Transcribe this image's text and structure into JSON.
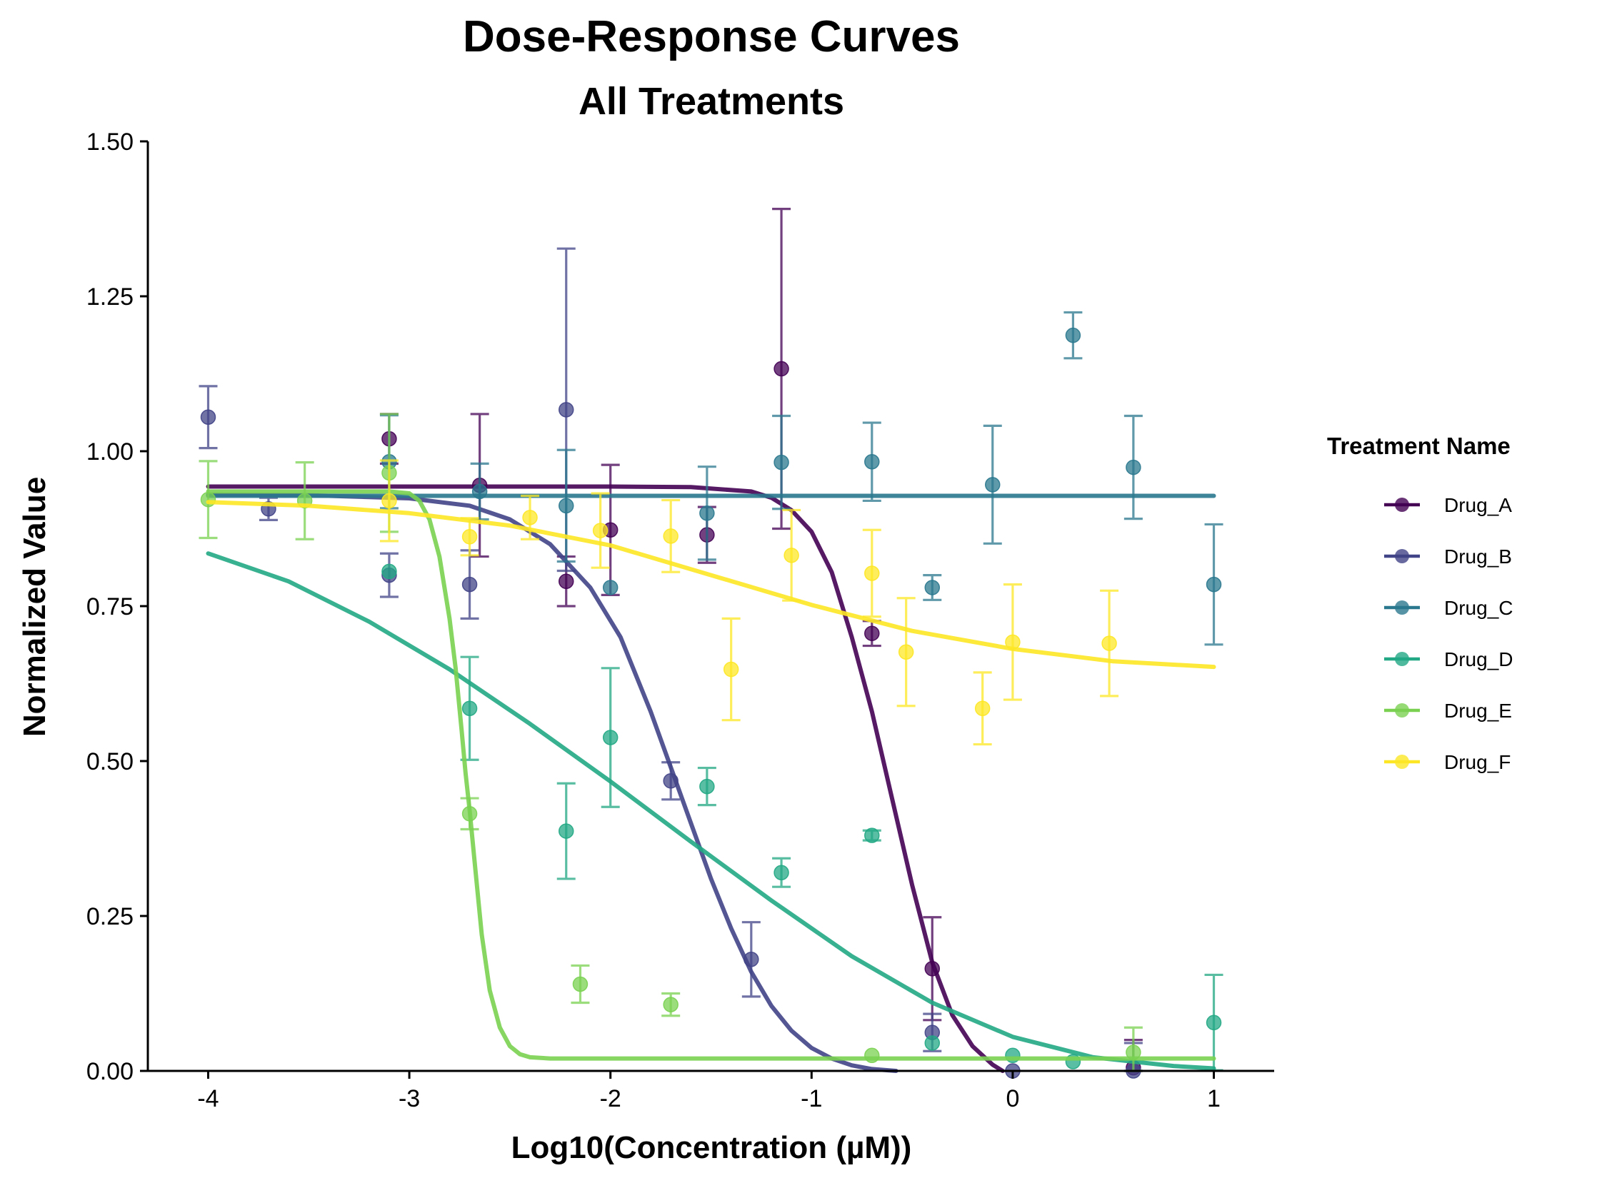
{
  "chart_data": {
    "type": "scatter",
    "title": "Dose-Response Curves",
    "subtitle": "All Treatments",
    "xlabel": "Log10(Concentration (µM))",
    "ylabel": "Normalized Value",
    "xlim": [
      -4.3,
      1.3
    ],
    "ylim": [
      0,
      1.5
    ],
    "x_ticks": [
      -4,
      -3,
      -2,
      -1,
      0,
      1
    ],
    "x_tick_labels": [
      "-4",
      "-3",
      "-2",
      "-1",
      "0",
      "1"
    ],
    "y_ticks": [
      0,
      0.25,
      0.5,
      0.75,
      1.0,
      1.25,
      1.5
    ],
    "y_tick_labels": [
      "0.00",
      "0.25",
      "0.50",
      "0.75",
      "1.00",
      "1.25",
      "1.50"
    ],
    "grid": false,
    "legend_title": "Treatment Name",
    "legend_position": "right",
    "series": [
      {
        "name": "Drug_A",
        "color": "#440154",
        "points": [
          {
            "x": -3.1,
            "y": 1.02,
            "err": 0.04
          },
          {
            "x": -2.65,
            "y": 0.945,
            "err": 0.115
          },
          {
            "x": -2.22,
            "y": 0.79,
            "err": 0.04
          },
          {
            "x": -2.0,
            "y": 0.873,
            "err": 0.105
          },
          {
            "x": -1.52,
            "y": 0.865,
            "err": 0.045
          },
          {
            "x": -1.15,
            "y": 1.133,
            "err": 0.258
          },
          {
            "x": -0.7,
            "y": 0.706,
            "err": 0.02
          },
          {
            "x": -0.4,
            "y": 0.165,
            "err": 0.083
          },
          {
            "x": 0.6,
            "y": 0.005,
            "err": 0.045
          }
        ],
        "curve": [
          [
            -4,
            0.943
          ],
          [
            -2.0,
            0.943
          ],
          [
            -1.6,
            0.942
          ],
          [
            -1.3,
            0.935
          ],
          [
            -1.2,
            0.925
          ],
          [
            -1.1,
            0.905
          ],
          [
            -1.0,
            0.87
          ],
          [
            -0.9,
            0.805
          ],
          [
            -0.8,
            0.7
          ],
          [
            -0.7,
            0.58
          ],
          [
            -0.6,
            0.44
          ],
          [
            -0.5,
            0.3
          ],
          [
            -0.4,
            0.175
          ],
          [
            -0.3,
            0.09
          ],
          [
            -0.2,
            0.04
          ],
          [
            -0.1,
            0.01
          ],
          [
            -0.05,
            0.0
          ]
        ]
      },
      {
        "name": "Drug_B",
        "color": "#414487",
        "points": [
          {
            "x": -4.0,
            "y": 1.055,
            "err": 0.05
          },
          {
            "x": -3.7,
            "y": 0.907,
            "err": 0.018
          },
          {
            "x": -3.1,
            "y": 0.8,
            "err": 0.035
          },
          {
            "x": -2.7,
            "y": 0.785,
            "err": 0.055
          },
          {
            "x": -2.22,
            "y": 1.067,
            "err": 0.26
          },
          {
            "x": -1.7,
            "y": 0.468,
            "err": 0.03
          },
          {
            "x": -1.3,
            "y": 0.18,
            "err": 0.06
          },
          {
            "x": -0.4,
            "y": 0.062,
            "err": 0.03
          },
          {
            "x": 0.0,
            "y": 0.0,
            "err": 0.0
          },
          {
            "x": 0.6,
            "y": 0.0,
            "err": 0.045
          }
        ],
        "curve": [
          [
            -4,
            0.93
          ],
          [
            -3.5,
            0.929
          ],
          [
            -3.0,
            0.924
          ],
          [
            -2.7,
            0.912
          ],
          [
            -2.5,
            0.89
          ],
          [
            -2.3,
            0.85
          ],
          [
            -2.1,
            0.78
          ],
          [
            -1.95,
            0.7
          ],
          [
            -1.8,
            0.58
          ],
          [
            -1.7,
            0.49
          ],
          [
            -1.6,
            0.4
          ],
          [
            -1.5,
            0.31
          ],
          [
            -1.4,
            0.23
          ],
          [
            -1.3,
            0.16
          ],
          [
            -1.2,
            0.105
          ],
          [
            -1.1,
            0.065
          ],
          [
            -1.0,
            0.037
          ],
          [
            -0.9,
            0.02
          ],
          [
            -0.8,
            0.009
          ],
          [
            -0.7,
            0.003
          ],
          [
            -0.58,
            0.0
          ]
        ]
      },
      {
        "name": "Drug_C",
        "color": "#2a788e",
        "points": [
          {
            "x": -3.1,
            "y": 0.983,
            "err": 0.075
          },
          {
            "x": -2.65,
            "y": 0.935,
            "err": 0.045
          },
          {
            "x": -2.22,
            "y": 0.912,
            "err": 0.09
          },
          {
            "x": -2.0,
            "y": 0.78,
            "err": 0.0
          },
          {
            "x": -1.52,
            "y": 0.9,
            "err": 0.075
          },
          {
            "x": -1.15,
            "y": 0.982,
            "err": 0.075
          },
          {
            "x": -0.7,
            "y": 0.983,
            "err": 0.063
          },
          {
            "x": -0.4,
            "y": 0.78,
            "err": 0.02
          },
          {
            "x": -0.1,
            "y": 0.946,
            "err": 0.095
          },
          {
            "x": 0.3,
            "y": 1.187,
            "err": 0.037
          },
          {
            "x": 0.6,
            "y": 0.974,
            "err": 0.083
          },
          {
            "x": 1.0,
            "y": 0.785,
            "err": 0.097
          }
        ],
        "curve": [
          [
            -4,
            0.928
          ],
          [
            1,
            0.928
          ]
        ]
      },
      {
        "name": "Drug_D",
        "color": "#22a884",
        "points": [
          {
            "x": -3.1,
            "y": 0.806,
            "err": 0.0
          },
          {
            "x": -2.7,
            "y": 0.585,
            "err": 0.083
          },
          {
            "x": -2.22,
            "y": 0.387,
            "err": 0.077
          },
          {
            "x": -2.0,
            "y": 0.538,
            "err": 0.112
          },
          {
            "x": -1.52,
            "y": 0.459,
            "err": 0.03
          },
          {
            "x": -1.15,
            "y": 0.32,
            "err": 0.023
          },
          {
            "x": -0.7,
            "y": 0.38,
            "err": 0.008
          },
          {
            "x": -0.4,
            "y": 0.045,
            "err": 0.0
          },
          {
            "x": 0.0,
            "y": 0.025,
            "err": 0.0
          },
          {
            "x": 0.3,
            "y": 0.015,
            "err": 0.0
          },
          {
            "x": 1.0,
            "y": 0.078,
            "err": 0.077
          }
        ],
        "curve": [
          [
            -4,
            0.835
          ],
          [
            -3.6,
            0.79
          ],
          [
            -3.2,
            0.725
          ],
          [
            -2.8,
            0.648
          ],
          [
            -2.4,
            0.56
          ],
          [
            -2.0,
            0.467
          ],
          [
            -1.6,
            0.37
          ],
          [
            -1.2,
            0.275
          ],
          [
            -0.8,
            0.185
          ],
          [
            -0.4,
            0.11
          ],
          [
            0.0,
            0.055
          ],
          [
            0.4,
            0.022
          ],
          [
            0.8,
            0.008
          ],
          [
            1.0,
            0.004
          ]
        ]
      },
      {
        "name": "Drug_E",
        "color": "#7ad151",
        "points": [
          {
            "x": -4.0,
            "y": 0.922,
            "err": 0.062
          },
          {
            "x": -3.52,
            "y": 0.92,
            "err": 0.062
          },
          {
            "x": -3.1,
            "y": 0.965,
            "err": 0.095
          },
          {
            "x": -2.7,
            "y": 0.415,
            "err": 0.025
          },
          {
            "x": -2.15,
            "y": 0.14,
            "err": 0.03
          },
          {
            "x": -1.7,
            "y": 0.107,
            "err": 0.018
          },
          {
            "x": -0.7,
            "y": 0.025,
            "err": 0.0
          },
          {
            "x": 0.6,
            "y": 0.03,
            "err": 0.04
          }
        ],
        "curve": [
          [
            -4,
            0.935
          ],
          [
            -3.1,
            0.935
          ],
          [
            -3.0,
            0.932
          ],
          [
            -2.95,
            0.92
          ],
          [
            -2.9,
            0.89
          ],
          [
            -2.85,
            0.83
          ],
          [
            -2.8,
            0.73
          ],
          [
            -2.77,
            0.65
          ],
          [
            -2.74,
            0.55
          ],
          [
            -2.72,
            0.48
          ],
          [
            -2.7,
            0.42
          ],
          [
            -2.67,
            0.32
          ],
          [
            -2.64,
            0.22
          ],
          [
            -2.6,
            0.13
          ],
          [
            -2.55,
            0.07
          ],
          [
            -2.5,
            0.04
          ],
          [
            -2.45,
            0.027
          ],
          [
            -2.4,
            0.022
          ],
          [
            -2.3,
            0.02
          ],
          [
            1,
            0.02
          ]
        ]
      },
      {
        "name": "Drug_F",
        "color": "#fde725",
        "points": [
          {
            "x": -3.1,
            "y": 0.92,
            "err": 0.065
          },
          {
            "x": -2.7,
            "y": 0.862,
            "err": 0.03
          },
          {
            "x": -2.4,
            "y": 0.893,
            "err": 0.035
          },
          {
            "x": -2.05,
            "y": 0.872,
            "err": 0.06
          },
          {
            "x": -1.7,
            "y": 0.863,
            "err": 0.058
          },
          {
            "x": -1.4,
            "y": 0.648,
            "err": 0.082
          },
          {
            "x": -1.1,
            "y": 0.832,
            "err": 0.073
          },
          {
            "x": -0.7,
            "y": 0.803,
            "err": 0.07
          },
          {
            "x": -0.53,
            "y": 0.676,
            "err": 0.087
          },
          {
            "x": -0.15,
            "y": 0.585,
            "err": 0.058
          },
          {
            "x": 0.0,
            "y": 0.692,
            "err": 0.093
          },
          {
            "x": 0.48,
            "y": 0.69,
            "err": 0.085
          }
        ],
        "curve": [
          [
            -4,
            0.918
          ],
          [
            -3.5,
            0.912
          ],
          [
            -3.0,
            0.9
          ],
          [
            -2.5,
            0.88
          ],
          [
            -2.0,
            0.848
          ],
          [
            -1.5,
            0.8
          ],
          [
            -1.0,
            0.752
          ],
          [
            -0.5,
            0.71
          ],
          [
            0.0,
            0.681
          ],
          [
            0.5,
            0.661
          ],
          [
            1.0,
            0.652
          ]
        ]
      }
    ]
  }
}
